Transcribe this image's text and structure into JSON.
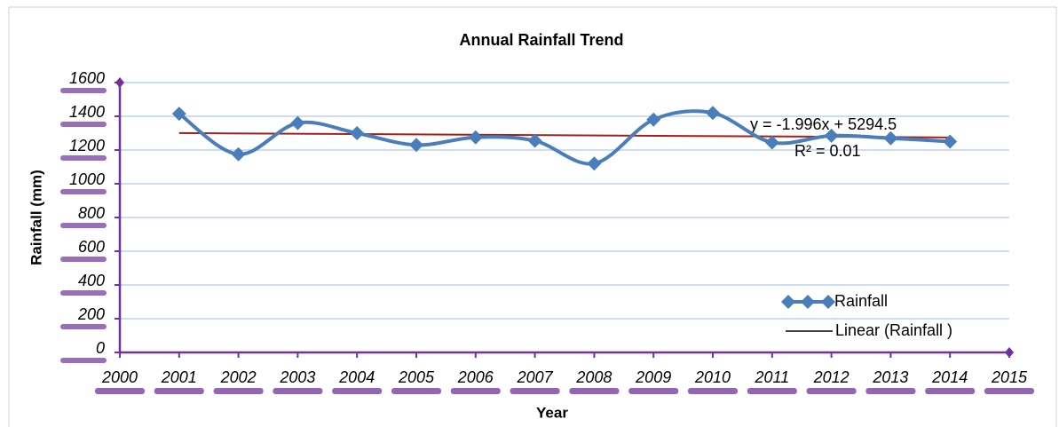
{
  "chart_data": {
    "type": "line",
    "title": "Annual Rainfall Trend",
    "x_label": "Year",
    "y_label": "Rainfall (mm)",
    "x": [
      2001,
      2002,
      2003,
      2004,
      2005,
      2006,
      2007,
      2008,
      2009,
      2010,
      2011,
      2012,
      2013,
      2014
    ],
    "series": [
      {
        "name": "Rainfall",
        "color": "#4a7ebb",
        "values": [
          1415,
          1175,
          1360,
          1300,
          1230,
          1275,
          1255,
          1120,
          1380,
          1420,
          1245,
          1285,
          1270,
          1250
        ]
      }
    ],
    "trendline": {
      "name": "Linear (Rainfall )",
      "color": "#a0201c",
      "slope": -1.996,
      "intercept": 5294.5,
      "equation": "y = -1.996x + 5294.5",
      "r2_label": "R² = 0.01"
    },
    "xlim": [
      2000,
      2015
    ],
    "xticks": [
      2000,
      2001,
      2002,
      2003,
      2004,
      2005,
      2006,
      2007,
      2008,
      2009,
      2010,
      2011,
      2012,
      2013,
      2014,
      2015
    ],
    "ylim": [
      0,
      1600
    ],
    "yticks": [
      0,
      200,
      400,
      600,
      800,
      1000,
      1200,
      1400,
      1600
    ],
    "grid": true,
    "legend": "lower right"
  }
}
